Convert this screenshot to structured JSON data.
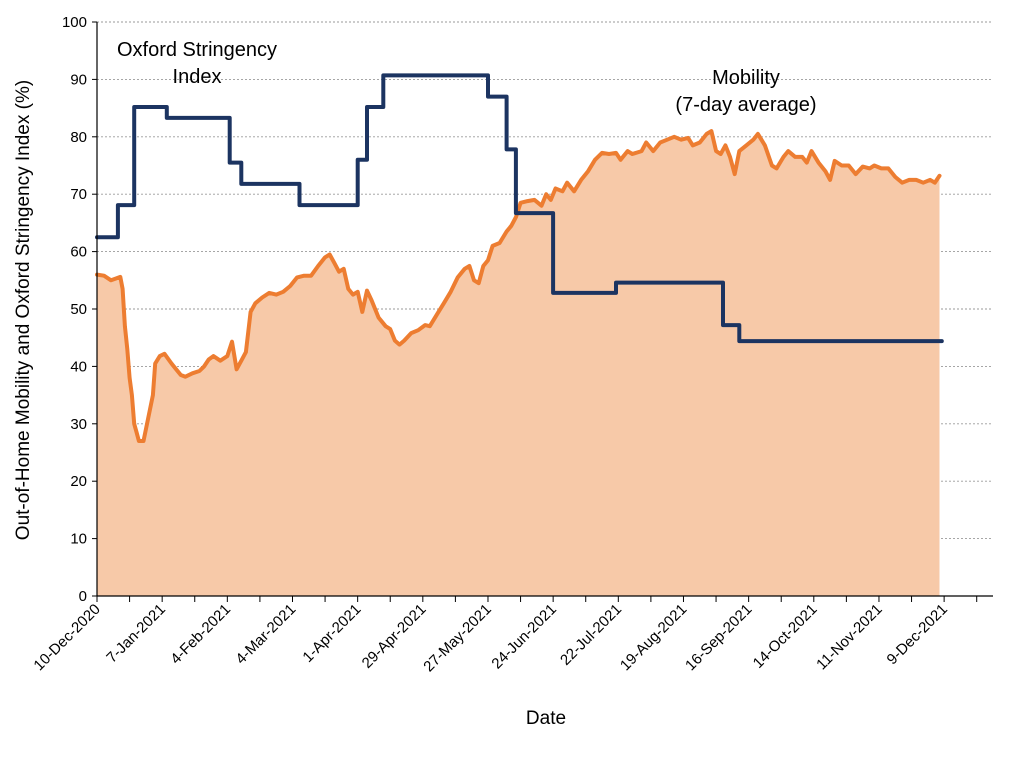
{
  "chart_data": {
    "type": "line",
    "xlabel": "Date",
    "ylabel": "Out-of-Home Mobility and Oxford Stringency Index (%)",
    "ylim": [
      0,
      100
    ],
    "yticks": [
      0,
      10,
      20,
      30,
      40,
      50,
      60,
      70,
      80,
      90,
      100
    ],
    "xlim": [
      "2020-12-10",
      "2021-12-30"
    ],
    "xticks": [
      "10-Dec-2020",
      "7-Jan-2021",
      "4-Feb-2021",
      "4-Mar-2021",
      "1-Apr-2021",
      "29-Apr-2021",
      "27-May-2021",
      "24-Jun-2021",
      "22-Jul-2021",
      "19-Aug-2021",
      "16-Sep-2021",
      "14-Oct-2021",
      "11-Nov-2021",
      "9-Dec-2021"
    ],
    "grid": "horizontal dashed",
    "annotations": [
      {
        "lines": [
          "Oxford Stringency",
          "Index"
        ],
        "series": "stringency"
      },
      {
        "lines": [
          "Mobility",
          "(7-day average)"
        ],
        "series": "mobility"
      }
    ],
    "series": [
      {
        "key": "stringency",
        "type": "step",
        "color": "#1c3461",
        "points": [
          [
            "2020-12-10",
            62.5
          ],
          [
            "2020-12-19",
            68.1
          ],
          [
            "2020-12-26",
            85.2
          ],
          [
            "2021-01-09",
            83.3
          ],
          [
            "2021-02-05",
            75.5
          ],
          [
            "2021-02-10",
            71.8
          ],
          [
            "2021-03-07",
            68.1
          ],
          [
            "2021-04-01",
            76.0
          ],
          [
            "2021-04-05",
            85.2
          ],
          [
            "2021-04-12",
            90.7
          ],
          [
            "2021-05-27",
            87.0
          ],
          [
            "2021-06-04",
            77.8
          ],
          [
            "2021-06-08",
            66.7
          ],
          [
            "2021-06-24",
            52.8
          ],
          [
            "2021-07-21",
            54.6
          ],
          [
            "2021-09-05",
            47.2
          ],
          [
            "2021-09-12",
            44.4
          ],
          [
            "2021-12-08",
            44.4
          ]
        ]
      },
      {
        "key": "mobility",
        "type": "area",
        "color": "#ed7d31",
        "fill": "#f7c9a8",
        "points": [
          [
            "2020-12-10",
            56.0
          ],
          [
            "2020-12-13",
            55.8
          ],
          [
            "2020-12-16",
            55.0
          ],
          [
            "2020-12-18",
            55.3
          ],
          [
            "2020-12-20",
            55.6
          ],
          [
            "2020-12-21",
            53.5
          ],
          [
            "2020-12-22",
            47.0
          ],
          [
            "2020-12-23",
            43.0
          ],
          [
            "2020-12-24",
            38.0
          ],
          [
            "2020-12-25",
            35.0
          ],
          [
            "2020-12-26",
            30.0
          ],
          [
            "2020-12-27",
            28.5
          ],
          [
            "2020-12-28",
            27.0
          ],
          [
            "2020-12-30",
            27.0
          ],
          [
            "2021-01-01",
            31.0
          ],
          [
            "2021-01-03",
            35.0
          ],
          [
            "2021-01-04",
            40.5
          ],
          [
            "2021-01-06",
            41.8
          ],
          [
            "2021-01-08",
            42.2
          ],
          [
            "2021-01-11",
            40.5
          ],
          [
            "2021-01-13",
            39.5
          ],
          [
            "2021-01-15",
            38.5
          ],
          [
            "2021-01-17",
            38.2
          ],
          [
            "2021-01-20",
            38.8
          ],
          [
            "2021-01-23",
            39.2
          ],
          [
            "2021-01-25",
            40.0
          ],
          [
            "2021-01-27",
            41.2
          ],
          [
            "2021-01-29",
            41.8
          ],
          [
            "2021-02-01",
            41.0
          ],
          [
            "2021-02-04",
            41.8
          ],
          [
            "2021-02-06",
            44.3
          ],
          [
            "2021-02-08",
            39.5
          ],
          [
            "2021-02-10",
            41.0
          ],
          [
            "2021-02-12",
            42.5
          ],
          [
            "2021-02-14",
            49.5
          ],
          [
            "2021-02-16",
            51.0
          ],
          [
            "2021-02-19",
            52.0
          ],
          [
            "2021-02-22",
            52.8
          ],
          [
            "2021-02-25",
            52.5
          ],
          [
            "2021-02-28",
            53.0
          ],
          [
            "2021-03-03",
            54.0
          ],
          [
            "2021-03-06",
            55.5
          ],
          [
            "2021-03-09",
            55.8
          ],
          [
            "2021-03-12",
            55.8
          ],
          [
            "2021-03-15",
            57.5
          ],
          [
            "2021-03-18",
            59.0
          ],
          [
            "2021-03-20",
            59.5
          ],
          [
            "2021-03-22",
            58.0
          ],
          [
            "2021-03-24",
            56.5
          ],
          [
            "2021-03-26",
            57.0
          ],
          [
            "2021-03-28",
            53.5
          ],
          [
            "2021-03-30",
            52.5
          ],
          [
            "2021-04-01",
            53.0
          ],
          [
            "2021-04-03",
            49.5
          ],
          [
            "2021-04-05",
            53.2
          ],
          [
            "2021-04-07",
            51.5
          ],
          [
            "2021-04-10",
            48.5
          ],
          [
            "2021-04-13",
            47.0
          ],
          [
            "2021-04-15",
            46.5
          ],
          [
            "2021-04-17",
            44.5
          ],
          [
            "2021-04-19",
            43.8
          ],
          [
            "2021-04-21",
            44.5
          ],
          [
            "2021-04-24",
            45.8
          ],
          [
            "2021-04-27",
            46.3
          ],
          [
            "2021-04-30",
            47.2
          ],
          [
            "2021-05-02",
            47.0
          ],
          [
            "2021-05-05",
            49.0
          ],
          [
            "2021-05-08",
            51.0
          ],
          [
            "2021-05-11",
            53.0
          ],
          [
            "2021-05-14",
            55.5
          ],
          [
            "2021-05-17",
            57.0
          ],
          [
            "2021-05-19",
            57.5
          ],
          [
            "2021-05-21",
            55.0
          ],
          [
            "2021-05-23",
            54.5
          ],
          [
            "2021-05-25",
            57.5
          ],
          [
            "2021-05-27",
            58.5
          ],
          [
            "2021-05-29",
            61.0
          ],
          [
            "2021-06-01",
            61.5
          ],
          [
            "2021-06-04",
            63.5
          ],
          [
            "2021-06-06",
            64.5
          ],
          [
            "2021-06-08",
            66.0
          ],
          [
            "2021-06-10",
            68.5
          ],
          [
            "2021-06-13",
            68.8
          ],
          [
            "2021-06-16",
            69.0
          ],
          [
            "2021-06-19",
            68.0
          ],
          [
            "2021-06-21",
            70.0
          ],
          [
            "2021-06-23",
            69.0
          ],
          [
            "2021-06-25",
            71.0
          ],
          [
            "2021-06-28",
            70.5
          ],
          [
            "2021-06-30",
            72.0
          ],
          [
            "2021-07-03",
            70.5
          ],
          [
            "2021-07-06",
            72.5
          ],
          [
            "2021-07-09",
            74.0
          ],
          [
            "2021-07-12",
            76.0
          ],
          [
            "2021-07-15",
            77.2
          ],
          [
            "2021-07-18",
            77.0
          ],
          [
            "2021-07-21",
            77.2
          ],
          [
            "2021-07-23",
            76.0
          ],
          [
            "2021-07-26",
            77.5
          ],
          [
            "2021-07-28",
            77.0
          ],
          [
            "2021-08-01",
            77.5
          ],
          [
            "2021-08-03",
            79.0
          ],
          [
            "2021-08-06",
            77.5
          ],
          [
            "2021-08-09",
            79.0
          ],
          [
            "2021-08-12",
            79.5
          ],
          [
            "2021-08-15",
            80.0
          ],
          [
            "2021-08-18",
            79.5
          ],
          [
            "2021-08-21",
            79.8
          ],
          [
            "2021-08-23",
            78.5
          ],
          [
            "2021-08-26",
            79.0
          ],
          [
            "2021-08-29",
            80.5
          ],
          [
            "2021-08-31",
            81.0
          ],
          [
            "2021-09-02",
            77.5
          ],
          [
            "2021-09-04",
            77.0
          ],
          [
            "2021-09-06",
            78.5
          ],
          [
            "2021-09-08",
            76.5
          ],
          [
            "2021-09-10",
            73.5
          ],
          [
            "2021-09-12",
            77.5
          ],
          [
            "2021-09-15",
            78.5
          ],
          [
            "2021-09-18",
            79.5
          ],
          [
            "2021-09-20",
            80.5
          ],
          [
            "2021-09-23",
            78.5
          ],
          [
            "2021-09-26",
            75.0
          ],
          [
            "2021-09-28",
            74.5
          ],
          [
            "2021-10-01",
            76.5
          ],
          [
            "2021-10-03",
            77.5
          ],
          [
            "2021-10-06",
            76.5
          ],
          [
            "2021-10-09",
            76.5
          ],
          [
            "2021-10-11",
            75.5
          ],
          [
            "2021-10-13",
            77.5
          ],
          [
            "2021-10-16",
            75.5
          ],
          [
            "2021-10-19",
            74.0
          ],
          [
            "2021-10-21",
            72.5
          ],
          [
            "2021-10-23",
            75.8
          ],
          [
            "2021-10-26",
            75.0
          ],
          [
            "2021-10-29",
            75.0
          ],
          [
            "2021-11-01",
            73.5
          ],
          [
            "2021-11-04",
            74.8
          ],
          [
            "2021-11-07",
            74.5
          ],
          [
            "2021-11-09",
            75.0
          ],
          [
            "2021-11-12",
            74.5
          ],
          [
            "2021-11-15",
            74.5
          ],
          [
            "2021-11-18",
            73.0
          ],
          [
            "2021-11-21",
            72.0
          ],
          [
            "2021-11-24",
            72.5
          ],
          [
            "2021-11-27",
            72.5
          ],
          [
            "2021-11-30",
            72.0
          ],
          [
            "2021-12-03",
            72.5
          ],
          [
            "2021-12-05",
            72.0
          ],
          [
            "2021-12-07",
            73.2
          ]
        ]
      }
    ]
  }
}
